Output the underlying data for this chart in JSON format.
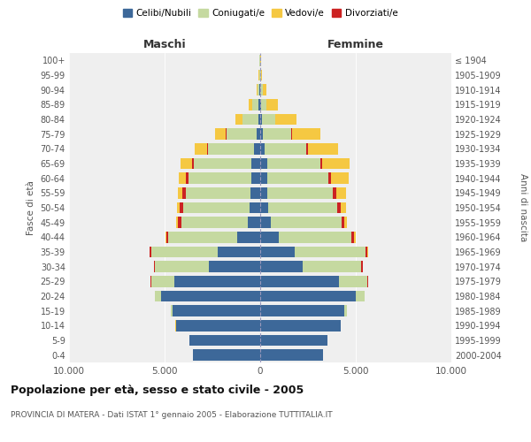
{
  "age_groups": [
    "0-4",
    "5-9",
    "10-14",
    "15-19",
    "20-24",
    "25-29",
    "30-34",
    "35-39",
    "40-44",
    "45-49",
    "50-54",
    "55-59",
    "60-64",
    "65-69",
    "70-74",
    "75-79",
    "80-84",
    "85-89",
    "90-94",
    "95-99",
    "100+"
  ],
  "birth_years": [
    "2000-2004",
    "1995-1999",
    "1990-1994",
    "1985-1989",
    "1980-1984",
    "1975-1979",
    "1970-1974",
    "1965-1969",
    "1960-1964",
    "1955-1959",
    "1950-1954",
    "1945-1949",
    "1940-1944",
    "1935-1939",
    "1930-1934",
    "1925-1929",
    "1920-1924",
    "1915-1919",
    "1910-1914",
    "1905-1909",
    "≤ 1904"
  ],
  "males": {
    "celibe": [
      3500,
      3700,
      4400,
      4600,
      5200,
      4500,
      2700,
      2200,
      1200,
      640,
      540,
      500,
      460,
      480,
      320,
      180,
      110,
      70,
      30,
      15,
      8
    ],
    "coniugato": [
      2,
      5,
      20,
      80,
      300,
      1200,
      2800,
      3500,
      3600,
      3500,
      3500,
      3400,
      3300,
      3000,
      2400,
      1600,
      800,
      350,
      120,
      40,
      20
    ],
    "vedovo": [
      0,
      0,
      1,
      2,
      5,
      10,
      15,
      30,
      50,
      80,
      150,
      250,
      400,
      600,
      650,
      550,
      350,
      150,
      50,
      15,
      5
    ],
    "divorziato": [
      0,
      0,
      1,
      2,
      5,
      20,
      50,
      80,
      120,
      160,
      180,
      170,
      120,
      80,
      50,
      30,
      15,
      10,
      5,
      2,
      1
    ]
  },
  "females": {
    "nubile": [
      3300,
      3500,
      4200,
      4400,
      5000,
      4100,
      2200,
      1800,
      980,
      540,
      430,
      390,
      360,
      360,
      230,
      130,
      70,
      50,
      20,
      10,
      4
    ],
    "coniugata": [
      3,
      8,
      30,
      150,
      450,
      1500,
      3100,
      3700,
      3800,
      3700,
      3600,
      3400,
      3200,
      2800,
      2200,
      1500,
      700,
      280,
      100,
      30,
      15
    ],
    "vedova": [
      0,
      0,
      1,
      3,
      8,
      15,
      30,
      60,
      100,
      150,
      280,
      500,
      900,
      1400,
      1600,
      1500,
      1100,
      600,
      200,
      60,
      20
    ],
    "divorziata": [
      0,
      0,
      1,
      3,
      8,
      25,
      60,
      90,
      130,
      170,
      200,
      200,
      150,
      100,
      60,
      40,
      15,
      10,
      5,
      2,
      1
    ]
  },
  "colors": {
    "celibe_nubile": "#3d6899",
    "coniugato_coniugata": "#c5d9a0",
    "vedovo_vedova": "#f5c842",
    "divorziato_divorziata": "#cc2222"
  },
  "xlim": 10000,
  "title": "Popolazione per età, sesso e stato civile - 2005",
  "subtitle": "PROVINCIA DI MATERA - Dati ISTAT 1° gennaio 2005 - Elaborazione TUTTITALIA.IT",
  "ylabel_left": "Fasce di età",
  "ylabel_right": "Anni di nascita",
  "xlabel_left": "Maschi",
  "xlabel_right": "Femmine",
  "legend_labels": [
    "Celibi/Nubili",
    "Coniugati/e",
    "Vedovi/e",
    "Divorziati/e"
  ],
  "background_color": "#ffffff",
  "plot_bg_color": "#efefef",
  "bar_height": 0.75
}
